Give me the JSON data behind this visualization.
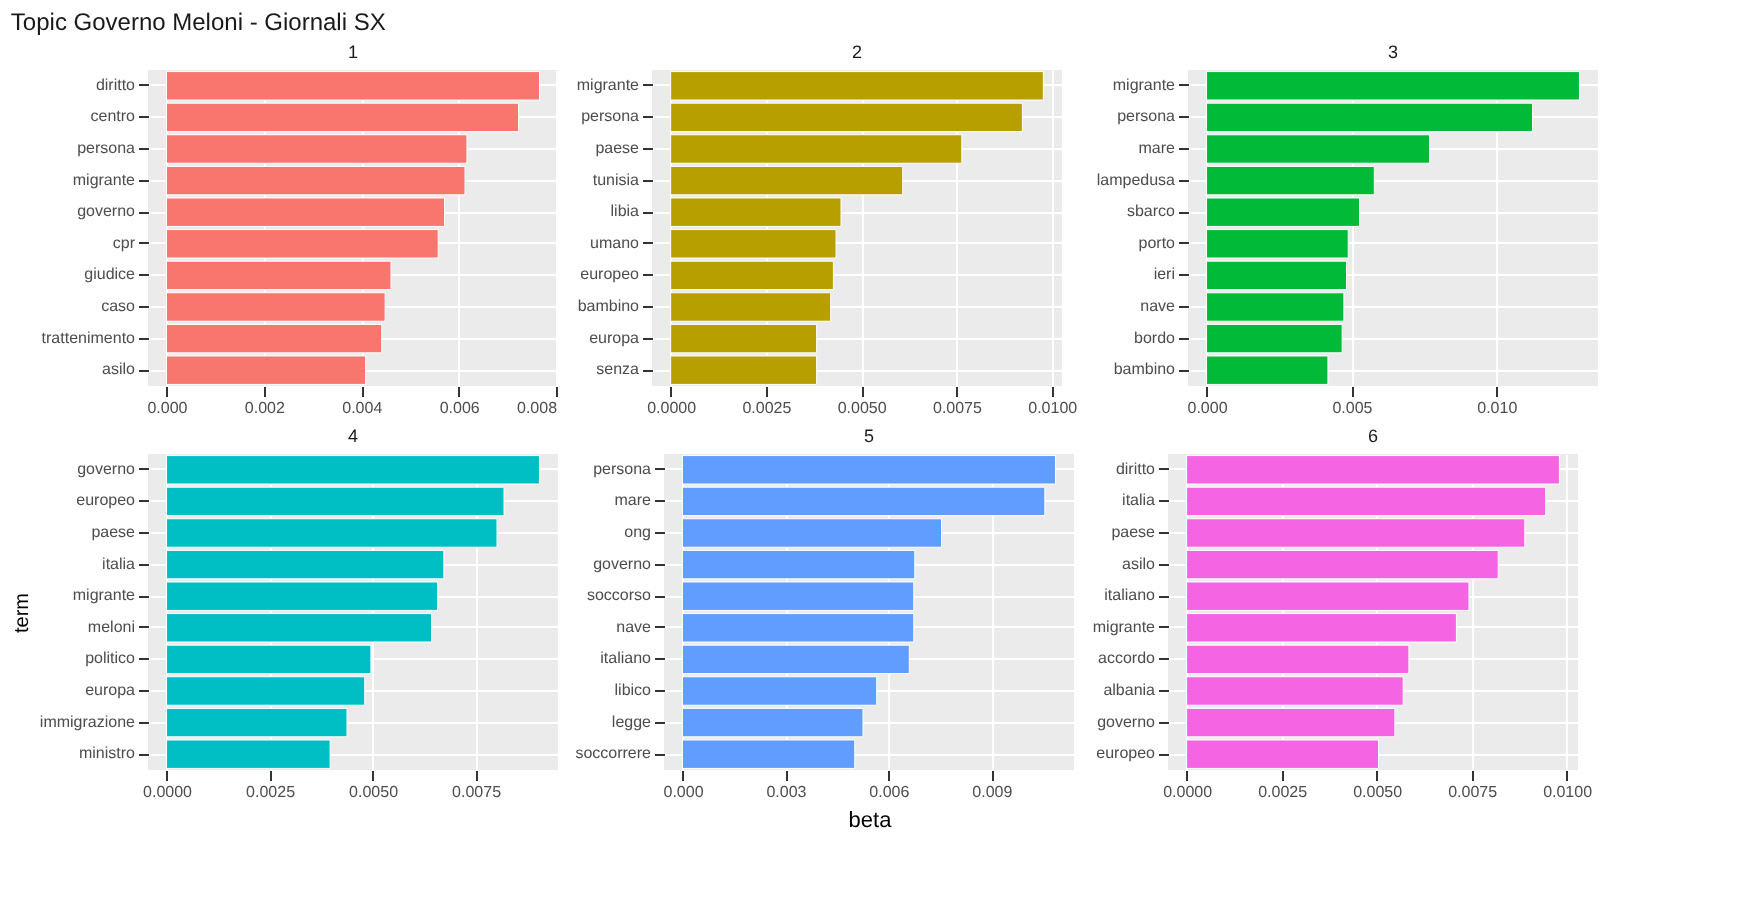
{
  "chart_data": [
    {
      "type": "bar",
      "orientation": "horizontal",
      "title": "1",
      "annotations": [
        "Topic Governo Meloni - Giornali SX"
      ],
      "categories": [
        "diritto",
        "centro",
        "persona",
        "migrante",
        "governo",
        "cpr",
        "giudice",
        "caso",
        "trattenimento",
        "asilo"
      ],
      "values": [
        0.00766,
        0.00723,
        0.00617,
        0.00613,
        0.00571,
        0.00558,
        0.00461,
        0.00449,
        0.00442,
        0.00409
      ],
      "color": "#f8766d",
      "xlim": [
        -0.00038,
        0.00804
      ],
      "xticks": [
        {
          "value": 0,
          "label": "0.000"
        },
        {
          "value": 0.002,
          "label": "0.002"
        },
        {
          "value": 0.004,
          "label": "0.004"
        },
        {
          "value": 0.006,
          "label": "0.006"
        },
        {
          "value": 0.008,
          "label": "0.008"
        }
      ],
      "grid": true
    },
    {
      "type": "bar",
      "orientation": "horizontal",
      "title": "2",
      "categories": [
        "migrante",
        "persona",
        "paese",
        "tunisia",
        "libia",
        "umano",
        "europeo",
        "bambino",
        "europa",
        "senza"
      ],
      "values": [
        0.00978,
        0.00923,
        0.00764,
        0.00609,
        0.00447,
        0.00434,
        0.00427,
        0.0042,
        0.00383,
        0.00383
      ],
      "color": "#b79f00",
      "xlim": [
        -0.00049,
        0.01027
      ],
      "xticks": [
        {
          "value": 0,
          "label": "0.0000"
        },
        {
          "value": 0.0025,
          "label": "0.0025"
        },
        {
          "value": 0.005,
          "label": "0.0050"
        },
        {
          "value": 0.0075,
          "label": "0.0075"
        },
        {
          "value": 0.01,
          "label": "0.0100"
        }
      ],
      "grid": true
    },
    {
      "type": "bar",
      "orientation": "horizontal",
      "title": "3",
      "categories": [
        "migrante",
        "persona",
        "mare",
        "lampedusa",
        "sbarco",
        "porto",
        "ieri",
        "nave",
        "bordo",
        "bambino"
      ],
      "values": [
        0.01287,
        0.01125,
        0.0077,
        0.00579,
        0.00528,
        0.00489,
        0.00483,
        0.00474,
        0.00468,
        0.00419
      ],
      "color": "#00ba38",
      "xlim": [
        -0.00064,
        0.01351
      ],
      "xticks": [
        {
          "value": 0,
          "label": "0.000"
        },
        {
          "value": 0.005,
          "label": "0.005"
        },
        {
          "value": 0.01,
          "label": "0.010"
        }
      ],
      "grid": true
    },
    {
      "type": "bar",
      "orientation": "horizontal",
      "title": "4",
      "ylabel": "term",
      "categories": [
        "governo",
        "europeo",
        "paese",
        "italia",
        "migrante",
        "meloni",
        "politico",
        "europa",
        "immigrazione",
        "ministro"
      ],
      "values": [
        0.00905,
        0.00819,
        0.00802,
        0.00673,
        0.00658,
        0.00643,
        0.00496,
        0.00481,
        0.00438,
        0.00397
      ],
      "color": "#00bfc4",
      "xlim": [
        -0.00045,
        0.0095
      ],
      "xticks": [
        {
          "value": 0,
          "label": "0.0000"
        },
        {
          "value": 0.0025,
          "label": "0.0025"
        },
        {
          "value": 0.005,
          "label": "0.0050"
        },
        {
          "value": 0.0075,
          "label": "0.0075"
        }
      ],
      "grid": true
    },
    {
      "type": "bar",
      "orientation": "horizontal",
      "title": "5",
      "xlabel": "beta",
      "categories": [
        "persona",
        "mare",
        "ong",
        "governo",
        "soccorso",
        "nave",
        "italiano",
        "libico",
        "legge",
        "soccorrere"
      ],
      "values": [
        0.01087,
        0.01056,
        0.00755,
        0.00677,
        0.00674,
        0.00674,
        0.00661,
        0.00566,
        0.00526,
        0.00502
      ],
      "color": "#619cff",
      "xlim": [
        -0.00054,
        0.01141
      ],
      "xticks": [
        {
          "value": 0,
          "label": "0.000"
        },
        {
          "value": 0.003,
          "label": "0.003"
        },
        {
          "value": 0.006,
          "label": "0.006"
        },
        {
          "value": 0.009,
          "label": "0.009"
        }
      ],
      "grid": true
    },
    {
      "type": "bar",
      "orientation": "horizontal",
      "title": "6",
      "categories": [
        "diritto",
        "italia",
        "paese",
        "asilo",
        "italiano",
        "migrante",
        "accordo",
        "albania",
        "governo",
        "europeo"
      ],
      "values": [
        0.00981,
        0.00945,
        0.0089,
        0.0082,
        0.00743,
        0.0071,
        0.00585,
        0.0057,
        0.00548,
        0.00505
      ],
      "color": "#f564e3",
      "xlim": [
        -0.00049,
        0.0103
      ],
      "xticks": [
        {
          "value": 0,
          "label": "0.0000"
        },
        {
          "value": 0.0025,
          "label": "0.0025"
        },
        {
          "value": 0.005,
          "label": "0.0050"
        },
        {
          "value": 0.0075,
          "label": "0.0075"
        },
        {
          "value": 0.01,
          "label": "0.0100"
        }
      ],
      "grid": true
    }
  ]
}
